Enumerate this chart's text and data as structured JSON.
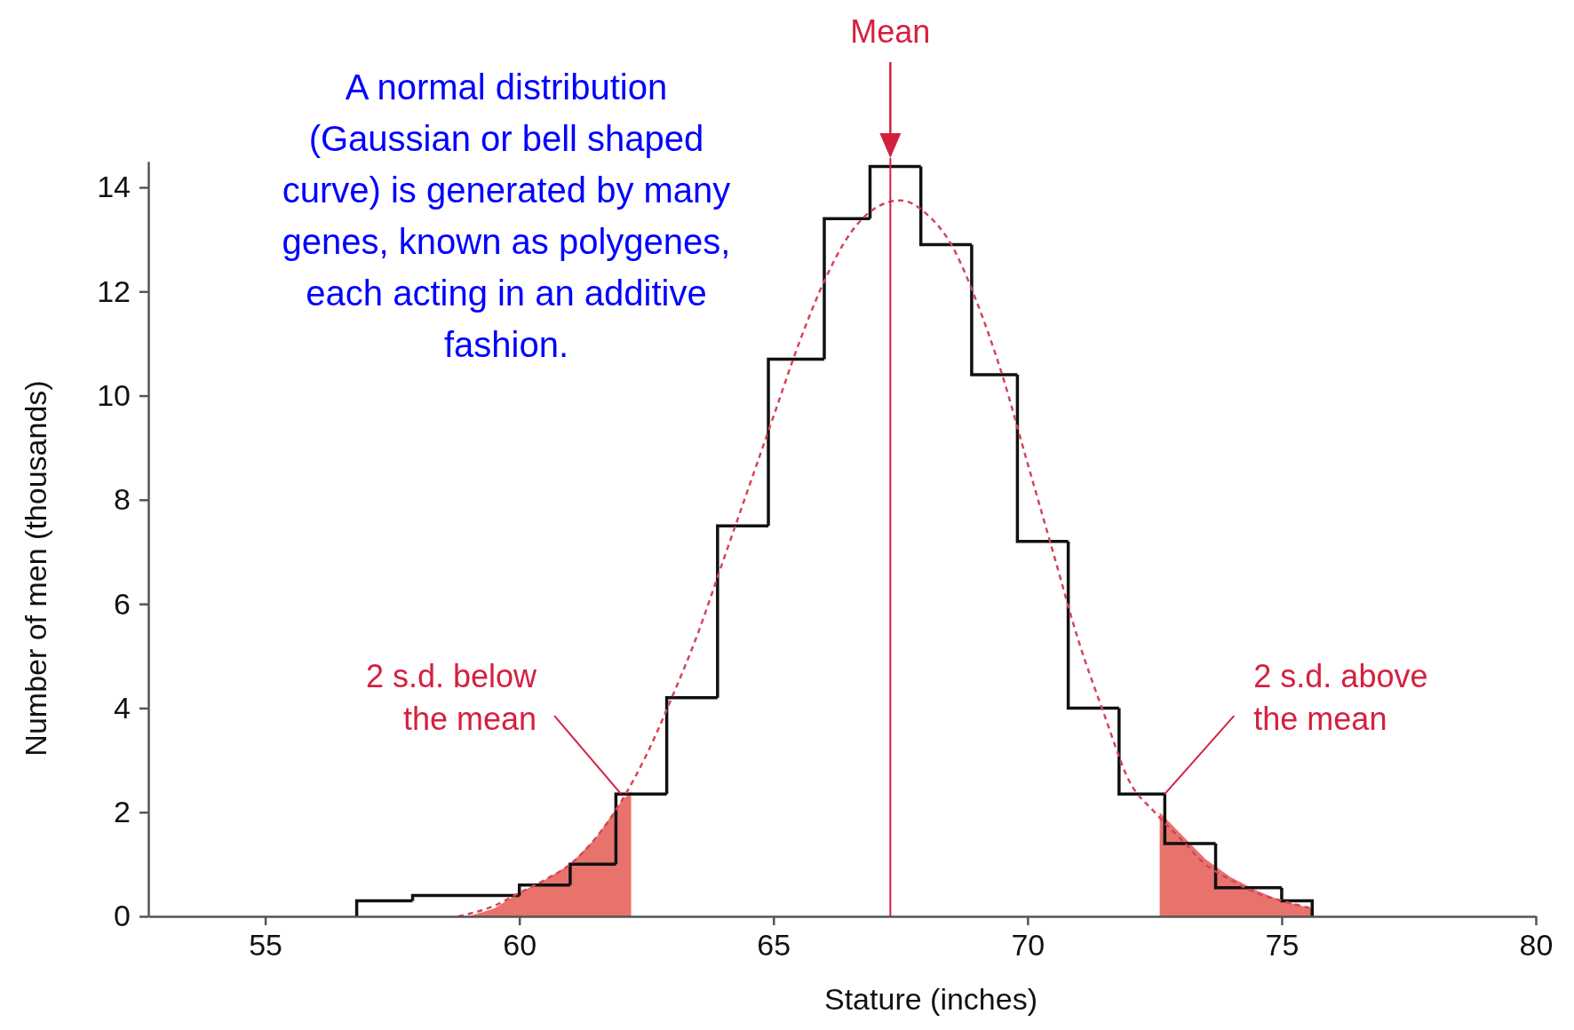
{
  "chart_data": {
    "type": "histogram",
    "xlabel": "Stature (inches)",
    "ylabel": "Number of men (thousands)",
    "bins": [
      56.8,
      57.9,
      60,
      61,
      61.9,
      62.9,
      63.9,
      64.9,
      66,
      66.9,
      67.9,
      68.9,
      69.8,
      70.8,
      71.8,
      72.7,
      73.7,
      75,
      75.6
    ],
    "values": [
      0.3,
      0.4,
      0.6,
      1.0,
      2.35,
      4.2,
      7.5,
      10.7,
      13.4,
      14.4,
      12.9,
      10.4,
      7.2,
      4.0,
      2.35,
      1.4,
      0.55,
      0.3
    ],
    "color": "#111111",
    "series": [
      {
        "type": "area",
        "color": "#e8736c",
        "x": [
          59,
          59.5,
          60,
          60.5,
          61,
          61.5,
          62,
          62.2
        ],
        "values": [
          0,
          0.15,
          0.45,
          0.7,
          1.0,
          1.5,
          2.2,
          2.4
        ]
      },
      {
        "type": "area",
        "color": "#e8736c",
        "x": [
          72.6,
          73,
          73.5,
          74,
          74.5,
          75,
          75.6
        ],
        "values": [
          2.0,
          1.6,
          1.1,
          0.75,
          0.5,
          0.3,
          0.15
        ]
      },
      {
        "type": "line",
        "color": "#d4455a",
        "line_style": "dashed",
        "x": [
          58.8,
          59.5,
          60,
          60.5,
          61,
          61.5,
          62,
          62.5,
          63,
          63.5,
          64,
          64.5,
          65,
          65.5,
          66,
          66.5,
          67,
          67.5,
          68,
          68.5,
          69,
          69.5,
          70,
          70.5,
          71,
          71.5,
          72,
          72.5,
          73,
          73.5,
          74,
          74.5,
          75,
          75.6
        ],
        "values": [
          0,
          0.2,
          0.45,
          0.7,
          1.0,
          1.5,
          2.2,
          3.1,
          4.2,
          5.4,
          6.8,
          8.2,
          9.6,
          11.0,
          12.2,
          13.1,
          13.6,
          13.75,
          13.5,
          12.9,
          11.8,
          10.4,
          8.7,
          7.0,
          5.3,
          3.9,
          2.6,
          2.0,
          1.5,
          1.0,
          0.7,
          0.45,
          0.3,
          0.15
        ]
      }
    ],
    "xlim": [
      52.7,
      80
    ],
    "xticks": [
      55,
      60,
      65,
      70,
      75,
      80
    ],
    "ylim": [
      0,
      14.5
    ],
    "yticks": [
      0,
      2,
      4,
      6,
      8,
      10,
      12,
      14
    ],
    "ref_lines": [
      {
        "axis": "x",
        "value": 67.3,
        "label": "Mean",
        "color": "#d4203f"
      }
    ],
    "annotations": [
      "A normal distribution (Gaussian or bell shaped curve) is generated by many genes, known as polygenes, each acting in an additive fashion.",
      {
        "text": "2 s.d. below the mean",
        "x": 62,
        "y": 2.35
      },
      {
        "text": "2 s.d. above the mean",
        "x": 72.7,
        "y": 2.35
      }
    ]
  }
}
